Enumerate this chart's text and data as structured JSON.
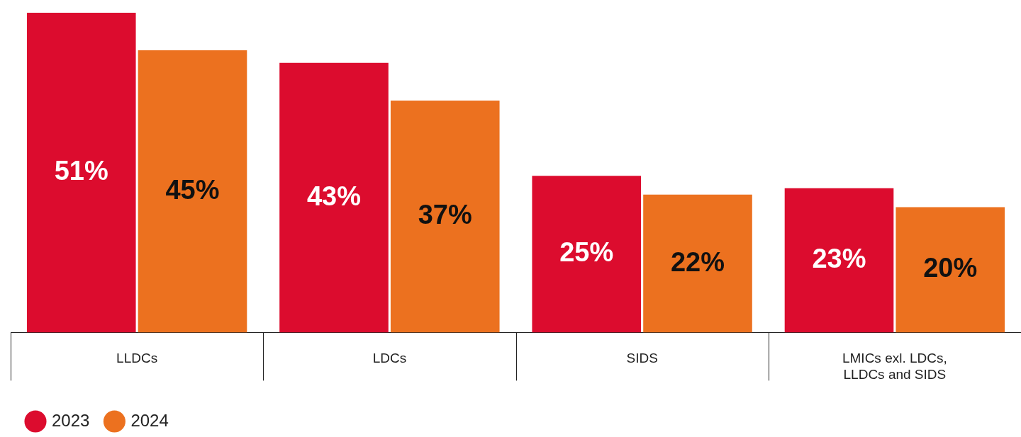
{
  "chart_data": {
    "type": "bar",
    "categories": [
      "LLDCs",
      "LDCs",
      "SIDS",
      "LMICs exl. LDCs, LLDCs and SIDS"
    ],
    "series": [
      {
        "name": "2023",
        "color": "#dc0c2e",
        "values": [
          51,
          43,
          25,
          23
        ],
        "value_labels": [
          "51%",
          "43%",
          "25%",
          "23%"
        ]
      },
      {
        "name": "2024",
        "color": "#ec711f",
        "values": [
          45,
          37,
          22,
          20
        ],
        "value_labels": [
          "45%",
          "37%",
          "22%",
          "20%"
        ]
      }
    ],
    "legend": "bottom left"
  }
}
